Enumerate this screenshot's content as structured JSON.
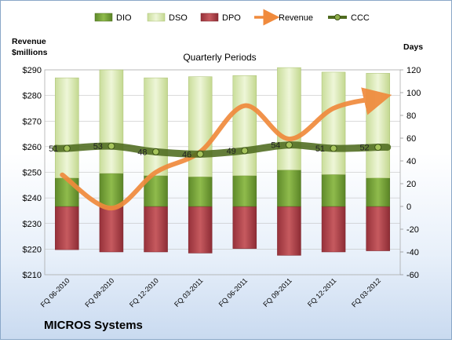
{
  "chart_data": {
    "type": "bar",
    "title": "Quarterly Periods",
    "company": "MICROS Systems",
    "left_axis_title_line1": "Revenue",
    "left_axis_title_line2": "$millions",
    "right_axis_title": "Days",
    "categories": [
      "FQ 06-2010",
      "FQ 09-2010",
      "FQ 12-2010",
      "FQ 03-2011",
      "FQ 06-2011",
      "FQ 09-2011",
      "FQ 12-2011",
      "FQ 03-2012"
    ],
    "left_axis": {
      "min": 210,
      "max": 290,
      "step": 10,
      "tick_labels": [
        "$210",
        "$220",
        "$230",
        "$240",
        "$250",
        "$260",
        "$270",
        "$280",
        "$290"
      ]
    },
    "right_axis": {
      "min": -60,
      "max": 120,
      "step": 20,
      "tick_labels": [
        "-60",
        "-40",
        "-20",
        "0",
        "20",
        "40",
        "60",
        "80",
        "100",
        "120"
      ]
    },
    "legend": [
      "DIO",
      "DSO",
      "DPO",
      "Revenue",
      "CCC"
    ],
    "series": [
      {
        "name": "DIO",
        "axis": "right",
        "color": "#7fa83e",
        "values": [
          25,
          29,
          27,
          26,
          27,
          32,
          28,
          25
        ]
      },
      {
        "name": "DSO",
        "axis": "right",
        "color": "#dcebb8",
        "values": [
          88,
          91,
          86,
          88,
          88,
          90,
          90,
          92
        ]
      },
      {
        "name": "DPO",
        "axis": "right",
        "color": "#b84348",
        "values": [
          -38,
          -40,
          -40,
          -41,
          -37,
          -43,
          -40,
          -39
        ]
      },
      {
        "name": "Revenue",
        "axis": "left",
        "color": "#f08a3c",
        "values": [
          249,
          236,
          250,
          258,
          276,
          263,
          275,
          279
        ]
      },
      {
        "name": "CCC",
        "axis": "right",
        "color": "#4f6b1f",
        "values": [
          51,
          53,
          48,
          46,
          49,
          54,
          51,
          52
        ]
      }
    ],
    "ccc_labels": [
      "51",
      "53",
      "48",
      "46",
      "49",
      "54",
      "51",
      "52"
    ],
    "gridlines": true,
    "legend_position": "top"
  }
}
